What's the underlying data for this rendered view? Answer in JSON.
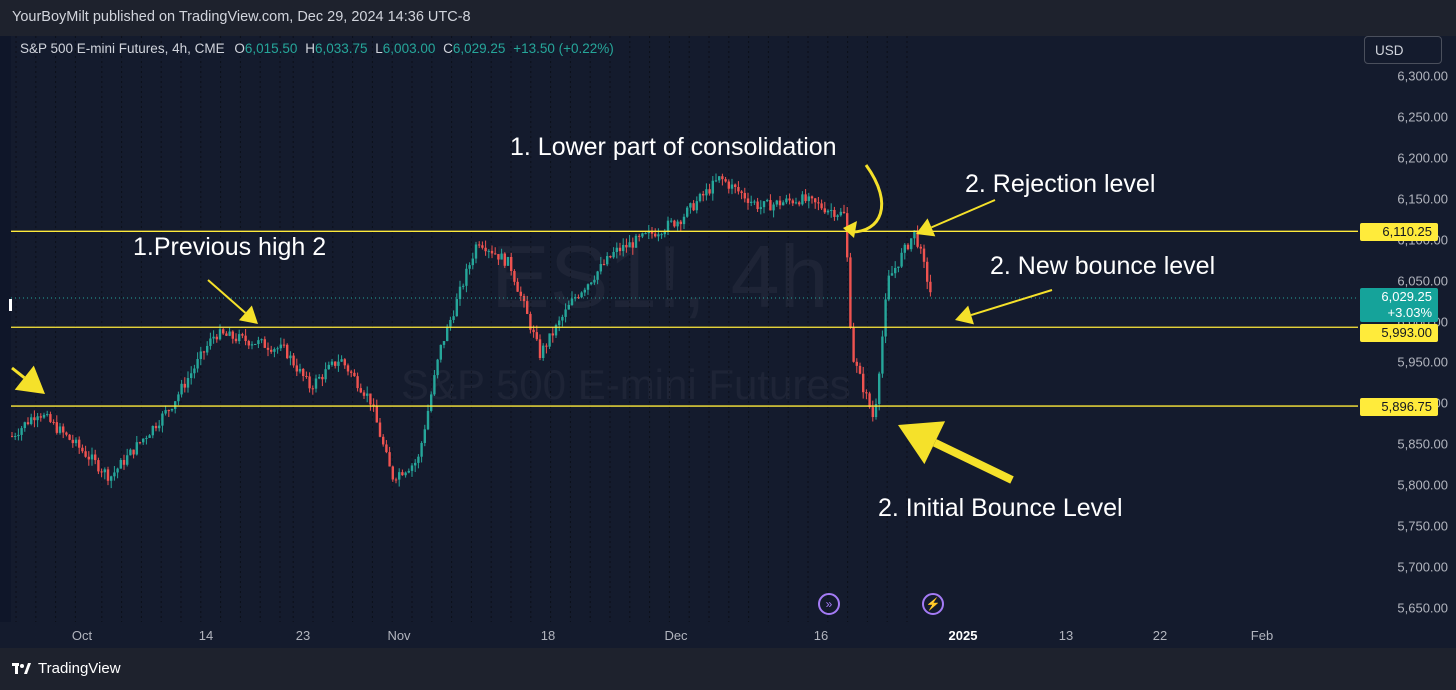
{
  "header": {
    "published": "YourBoyMilt published on TradingView.com, Dec 29, 2024 14:36 UTC-8"
  },
  "legend": {
    "symbol": "S&P 500 E-mini Futures, 4h, CME",
    "open_label": "O",
    "open": "6,015.50",
    "high_label": "H",
    "high": "6,033.75",
    "low_label": "L",
    "low": "6,003.00",
    "close_label": "C",
    "close": "6,029.25",
    "change": "+13.50 (+0.22%)"
  },
  "currency_button": "USD",
  "watermark": {
    "big": "ES1!, 4h",
    "small": "S&P 500 E-mini Futures"
  },
  "colors": {
    "up": "#26a69a",
    "down": "#ef5350",
    "level": "#ffeb3b",
    "arrow": "#f5e12a",
    "price_tag": "#15a39a"
  },
  "chart_data": {
    "type": "candlestick",
    "ylim": [
      5625,
      6325
    ],
    "y_ticks": [
      "6,300.00",
      "6,250.00",
      "6,200.00",
      "6,150.00",
      "6,100.00",
      "6,050.00",
      "6,000.00",
      "5,950.00",
      "5,900.00",
      "5,850.00",
      "5,800.00",
      "5,750.00",
      "5,700.00",
      "5,650.00"
    ],
    "x_ticks": [
      "Oct",
      "14",
      "23",
      "Nov",
      "18",
      "Dec",
      "16",
      "2025",
      "13",
      "22",
      "Feb"
    ],
    "price_path": [
      {
        "date": "Sep 25",
        "price": 5860
      },
      {
        "date": "Sep 28",
        "price": 5890
      },
      {
        "date": "Oct 2",
        "price": 5845
      },
      {
        "date": "Oct 7",
        "price": 5810
      },
      {
        "date": "Oct 11",
        "price": 5895
      },
      {
        "date": "Oct 15",
        "price": 5985
      },
      {
        "date": "Oct 18",
        "price": 5975
      },
      {
        "date": "Oct 21",
        "price": 5965
      },
      {
        "date": "Oct 24",
        "price": 5920
      },
      {
        "date": "Oct 28",
        "price": 5955
      },
      {
        "date": "Oct 30",
        "price": 5905
      },
      {
        "date": "Nov 1",
        "price": 5810
      },
      {
        "date": "Nov 4",
        "price": 5830
      },
      {
        "date": "Nov 6",
        "price": 5965
      },
      {
        "date": "Nov 11",
        "price": 6100
      },
      {
        "date": "Nov 14",
        "price": 6070
      },
      {
        "date": "Nov 19",
        "price": 5960
      },
      {
        "date": "Nov 22",
        "price": 6030
      },
      {
        "date": "Nov 27",
        "price": 6085
      },
      {
        "date": "Dec 3",
        "price": 6125
      },
      {
        "date": "Dec 6",
        "price": 6175
      },
      {
        "date": "Dec 10",
        "price": 6140
      },
      {
        "date": "Dec 13",
        "price": 6150
      },
      {
        "date": "Dec 17",
        "price": 6130
      },
      {
        "date": "Dec 18",
        "price": 5960
      },
      {
        "date": "Dec 20",
        "price": 5880
      },
      {
        "date": "Dec 23",
        "price": 6050
      },
      {
        "date": "Dec 26",
        "price": 6110
      },
      {
        "date": "Dec 27",
        "price": 6029.25
      }
    ],
    "levels": [
      {
        "label": "6,110.25",
        "value": 6110.25
      },
      {
        "label": "5,993.00",
        "value": 5993.0
      },
      {
        "label": "5,896.75",
        "value": 5896.75
      }
    ],
    "current": {
      "price": "6,029.25",
      "change": "+3.03%",
      "value": 6029.25
    },
    "annotations": [
      "1. Lower part of consolidation",
      "2. Rejection level",
      "1.Previous high 2",
      "2. New bounce level",
      "2. Initial Bounce Level"
    ]
  },
  "footer": {
    "brand": "TradingView",
    "logo_icon": "tradingview-logo-icon"
  }
}
